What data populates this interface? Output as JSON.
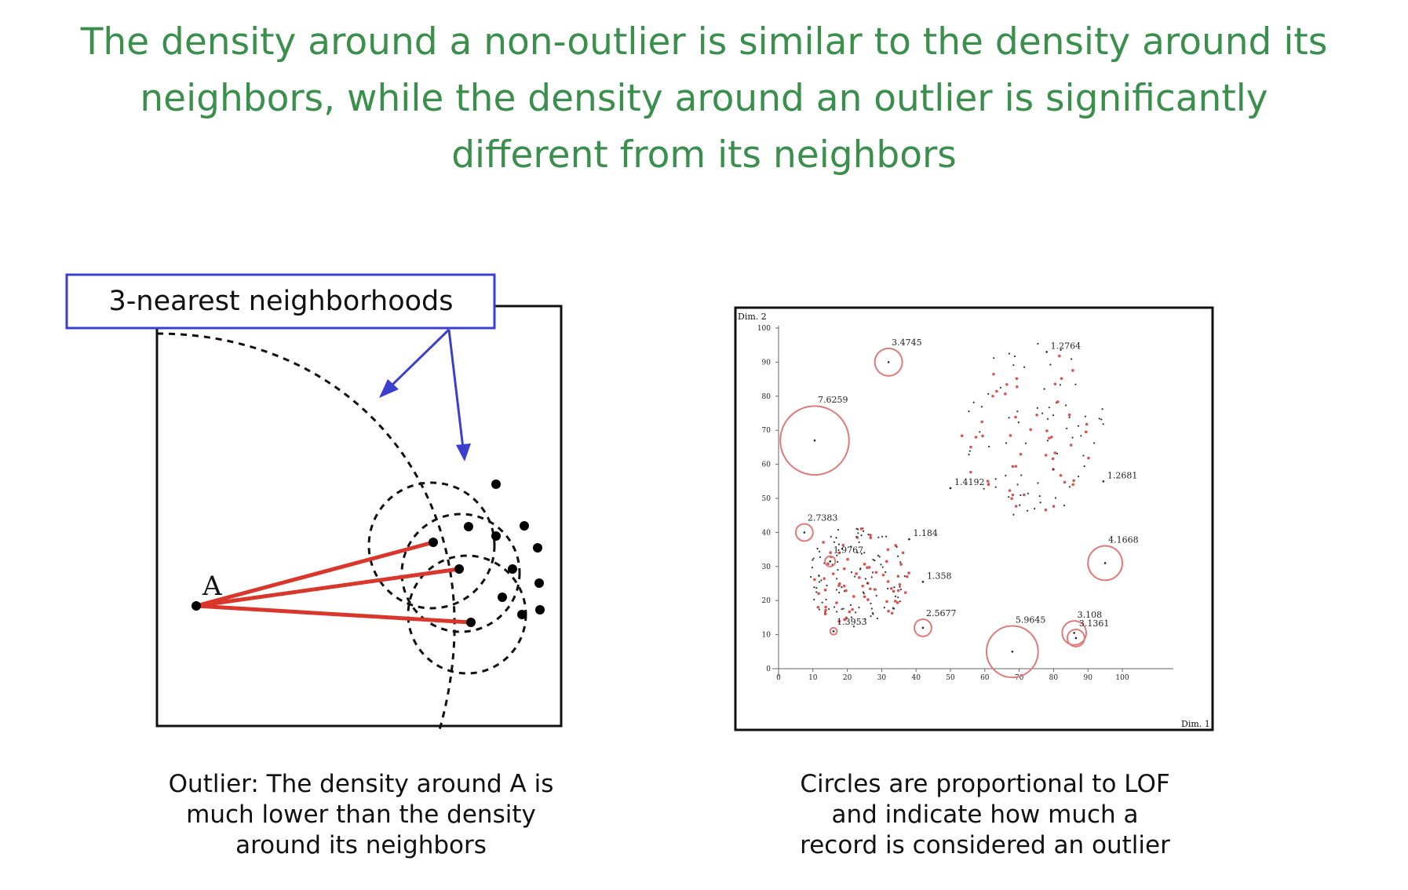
{
  "title": {
    "lines": [
      "The density around a non-outlier is similar to the density around its",
      "neighbors, while the density around an outlier is significantly",
      "different from its neighbors"
    ]
  },
  "left_diagram": {
    "callout_label": "3-nearest neighborhoods",
    "point_label": "A",
    "caption_lines": [
      "Outlier: The density around A is",
      "much lower than the density",
      "around its neighbors"
    ]
  },
  "right_chart": {
    "x_axis_label": "Dim. 1",
    "y_axis_label": "Dim. 2",
    "x_ticks": [
      "0",
      "10",
      "20",
      "30",
      "40",
      "50",
      "60",
      "70",
      "80",
      "90",
      "100"
    ],
    "y_ticks": [
      "0",
      "10",
      "20",
      "30",
      "40",
      "50",
      "60",
      "70",
      "80",
      "90",
      "100"
    ],
    "lof_labels": [
      {
        "text": "3.4745",
        "x": 32,
        "y": 90,
        "r": 4
      },
      {
        "text": "1.2764",
        "x": 78,
        "y": 93,
        "r": 0
      },
      {
        "text": "7.6259",
        "x": 10.5,
        "y": 67,
        "r": 10
      },
      {
        "text": "1.2681",
        "x": 94.5,
        "y": 55,
        "r": 0
      },
      {
        "text": "1.4192",
        "x": 50,
        "y": 53,
        "r": 0
      },
      {
        "text": "2.7383",
        "x": 7.5,
        "y": 40,
        "r": 2.5
      },
      {
        "text": "1.184",
        "x": 38,
        "y": 38,
        "r": 0
      },
      {
        "text": "1.9767",
        "x": 15,
        "y": 31.5,
        "r": 1.5
      },
      {
        "text": "1.358",
        "x": 42,
        "y": 25.5,
        "r": 0
      },
      {
        "text": "4.1668",
        "x": 95,
        "y": 31,
        "r": 5
      },
      {
        "text": "2.5677",
        "x": 42,
        "y": 12,
        "r": 2.5
      },
      {
        "text": "1.3953",
        "x": 16,
        "y": 11,
        "r": 1
      },
      {
        "text": "3.108",
        "x": 86,
        "y": 10.5,
        "r": 3.5
      },
      {
        "text": "3.1361",
        "x": 86.5,
        "y": 9,
        "r": 2.5
      },
      {
        "text": "5.9645",
        "x": 68,
        "y": 5,
        "r": 7.5
      }
    ],
    "caption_lines": [
      "Circles are proportional to LOF",
      "and indicate how much a",
      "record is considered an outlier"
    ]
  }
}
